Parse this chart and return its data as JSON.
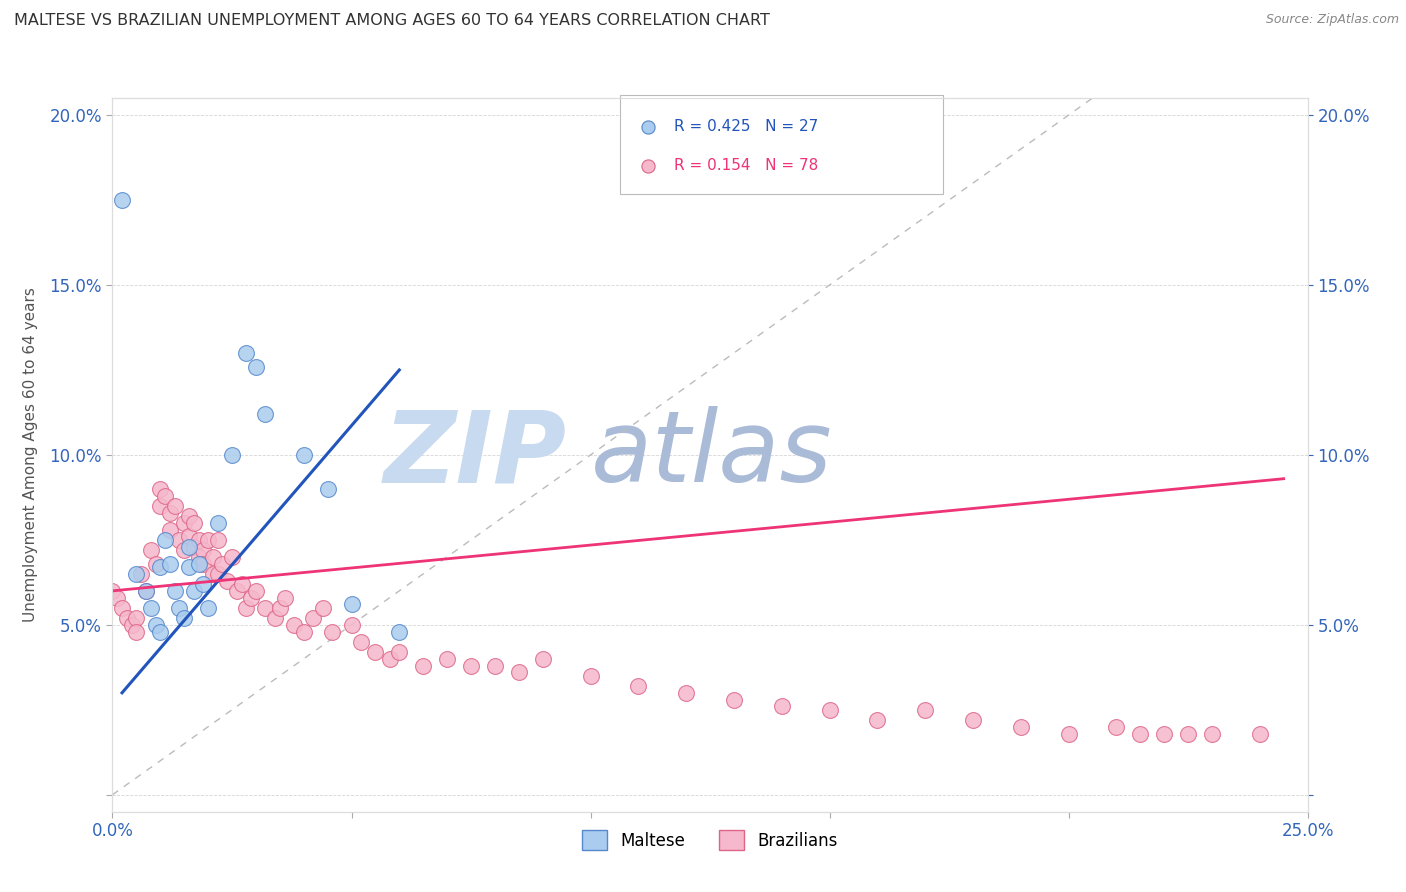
{
  "title": "MALTESE VS BRAZILIAN UNEMPLOYMENT AMONG AGES 60 TO 64 YEARS CORRELATION CHART",
  "source": "Source: ZipAtlas.com",
  "ylabel": "Unemployment Among Ages 60 to 64 years",
  "xlim": [
    0.0,
    0.25
  ],
  "ylim": [
    -0.005,
    0.205
  ],
  "xticks": [
    0.0,
    0.05,
    0.1,
    0.15,
    0.2,
    0.25
  ],
  "yticks_left": [
    0.0,
    0.05,
    0.1,
    0.15,
    0.2
  ],
  "yticks_right": [
    0.0,
    0.05,
    0.1,
    0.15,
    0.2
  ],
  "xtick_labels": [
    "0.0%",
    "",
    "",
    "",
    "",
    "25.0%"
  ],
  "ytick_labels_left": [
    "",
    "5.0%",
    "10.0%",
    "15.0%",
    "20.0%"
  ],
  "ytick_labels_right": [
    "",
    "5.0%",
    "10.0%",
    "15.0%",
    "20.0%"
  ],
  "maltese_R": 0.425,
  "maltese_N": 27,
  "brazilian_R": 0.154,
  "brazilian_N": 78,
  "maltese_color": "#aaccee",
  "brazilian_color": "#f5b8cc",
  "maltese_edge_color": "#5588cc",
  "brazilian_edge_color": "#dd6688",
  "trendline_maltese_color": "#2255bb",
  "trendline_brazilian_color": "#ee3377",
  "ref_line_color": "#bbbbbb",
  "watermark_zip_color": "#c8daf0",
  "watermark_atlas_color": "#aabbd8",
  "background_color": "#ffffff",
  "maltese_x": [
    0.002,
    0.005,
    0.007,
    0.008,
    0.009,
    0.01,
    0.01,
    0.011,
    0.012,
    0.013,
    0.014,
    0.015,
    0.016,
    0.016,
    0.017,
    0.018,
    0.019,
    0.02,
    0.022,
    0.025,
    0.028,
    0.03,
    0.032,
    0.04,
    0.045,
    0.05,
    0.06
  ],
  "maltese_y": [
    0.175,
    0.065,
    0.06,
    0.055,
    0.05,
    0.067,
    0.048,
    0.075,
    0.068,
    0.06,
    0.055,
    0.052,
    0.073,
    0.067,
    0.06,
    0.068,
    0.062,
    0.055,
    0.08,
    0.1,
    0.13,
    0.126,
    0.112,
    0.1,
    0.09,
    0.056,
    0.048
  ],
  "brazilian_x": [
    0.0,
    0.001,
    0.002,
    0.003,
    0.004,
    0.005,
    0.005,
    0.006,
    0.007,
    0.008,
    0.009,
    0.01,
    0.01,
    0.011,
    0.012,
    0.012,
    0.013,
    0.014,
    0.015,
    0.015,
    0.016,
    0.016,
    0.017,
    0.017,
    0.018,
    0.018,
    0.019,
    0.019,
    0.02,
    0.021,
    0.021,
    0.022,
    0.022,
    0.023,
    0.024,
    0.025,
    0.026,
    0.027,
    0.028,
    0.029,
    0.03,
    0.032,
    0.034,
    0.035,
    0.036,
    0.038,
    0.04,
    0.042,
    0.044,
    0.046,
    0.05,
    0.052,
    0.055,
    0.058,
    0.06,
    0.065,
    0.07,
    0.075,
    0.08,
    0.085,
    0.09,
    0.1,
    0.11,
    0.12,
    0.13,
    0.14,
    0.15,
    0.16,
    0.17,
    0.18,
    0.19,
    0.2,
    0.21,
    0.215,
    0.22,
    0.225,
    0.23,
    0.24
  ],
  "brazilian_y": [
    0.06,
    0.058,
    0.055,
    0.052,
    0.05,
    0.052,
    0.048,
    0.065,
    0.06,
    0.072,
    0.068,
    0.09,
    0.085,
    0.088,
    0.083,
    0.078,
    0.085,
    0.075,
    0.08,
    0.072,
    0.082,
    0.076,
    0.08,
    0.073,
    0.075,
    0.07,
    0.072,
    0.068,
    0.075,
    0.07,
    0.065,
    0.075,
    0.065,
    0.068,
    0.063,
    0.07,
    0.06,
    0.062,
    0.055,
    0.058,
    0.06,
    0.055,
    0.052,
    0.055,
    0.058,
    0.05,
    0.048,
    0.052,
    0.055,
    0.048,
    0.05,
    0.045,
    0.042,
    0.04,
    0.042,
    0.038,
    0.04,
    0.038,
    0.038,
    0.036,
    0.04,
    0.035,
    0.032,
    0.03,
    0.028,
    0.026,
    0.025,
    0.022,
    0.025,
    0.022,
    0.02,
    0.018,
    0.02,
    0.018,
    0.018,
    0.018,
    0.018,
    0.018
  ],
  "maltese_trendline_x": [
    0.002,
    0.06
  ],
  "maltese_trendline_y": [
    0.03,
    0.125
  ],
  "brazilian_trendline_x": [
    0.0,
    0.245
  ],
  "brazilian_trendline_y": [
    0.06,
    0.093
  ],
  "ref_line_x": [
    0.0,
    0.205
  ],
  "ref_line_y": [
    0.0,
    0.205
  ]
}
